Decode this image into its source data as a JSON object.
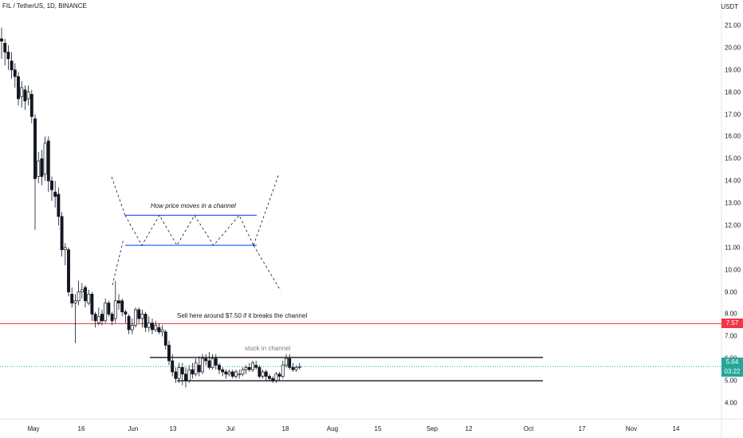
{
  "header": {
    "symbol": "FIL / TetherUS, 1D, BINANCE",
    "currency": "USDT"
  },
  "price_tags": {
    "alert_price": "7.57",
    "last_price": "5.64",
    "countdown": "03:22",
    "alert_color": "#f23645",
    "last_color": "#26a69a"
  },
  "chart_data": {
    "type": "candlestick",
    "ylim": [
      3.5,
      21.6
    ],
    "y_ticks": [
      "21.00",
      "20.00",
      "19.00",
      "18.00",
      "17.00",
      "16.00",
      "15.00",
      "14.00",
      "13.00",
      "12.00",
      "11.00",
      "10.00",
      "9.00",
      "8.00",
      "7.00",
      "6.00",
      "5.00",
      "4.00"
    ],
    "x_ticks": [
      "May",
      "16",
      "Jun",
      "13",
      "Jul",
      "18",
      "Aug",
      "15",
      "Sep",
      "12",
      "Oct",
      "17",
      "Nov",
      "14"
    ],
    "up_color": "#131722",
    "down_color": "#131722",
    "candles": [
      [
        20.4,
        20.3,
        20.9,
        19.5
      ],
      [
        20.2,
        19.8,
        20.4,
        19.2
      ],
      [
        19.8,
        19.5,
        20.1,
        19.0
      ],
      [
        19.4,
        19.0,
        19.8,
        18.6
      ],
      [
        19.0,
        18.7,
        19.3,
        18.2
      ],
      [
        18.7,
        17.7,
        18.9,
        17.4
      ],
      [
        17.8,
        18.2,
        18.5,
        17.3
      ],
      [
        18.1,
        17.6,
        18.3,
        17.2
      ],
      [
        17.7,
        18.0,
        18.3,
        17.4
      ],
      [
        17.9,
        16.9,
        18.1,
        16.6
      ],
      [
        16.8,
        14.1,
        17.0,
        11.8
      ],
      [
        14.2,
        14.9,
        15.3,
        13.9
      ],
      [
        15.0,
        14.2,
        15.4,
        13.8
      ],
      [
        14.3,
        15.7,
        16.0,
        14.0
      ],
      [
        15.8,
        14.0,
        16.0,
        13.5
      ],
      [
        14.0,
        13.6,
        14.2,
        13.1
      ],
      [
        13.5,
        13.3,
        14.0,
        12.8
      ],
      [
        13.4,
        12.4,
        13.7,
        12.0
      ],
      [
        12.4,
        10.9,
        12.6,
        10.6
      ],
      [
        10.9,
        11.0,
        11.2,
        10.2
      ],
      [
        10.9,
        9.0,
        11.0,
        8.8
      ],
      [
        8.9,
        8.5,
        9.2,
        8.3
      ],
      [
        8.5,
        8.6,
        8.9,
        6.7
      ],
      [
        8.6,
        9.0,
        9.5,
        8.4
      ],
      [
        9.0,
        9.1,
        9.4,
        8.7
      ],
      [
        9.2,
        8.6,
        9.3,
        8.3
      ],
      [
        8.5,
        8.9,
        9.1,
        8.4
      ],
      [
        8.9,
        8.0,
        9.0,
        7.7
      ],
      [
        8.0,
        7.7,
        8.1,
        7.4
      ],
      [
        7.6,
        7.9,
        8.3,
        7.5
      ],
      [
        8.0,
        7.7,
        8.2,
        7.5
      ],
      [
        7.7,
        8.5,
        8.7,
        7.6
      ],
      [
        8.5,
        8.0,
        8.6,
        7.9
      ],
      [
        8.0,
        7.7,
        8.1,
        7.5
      ],
      [
        7.8,
        8.6,
        9.5,
        7.6
      ],
      [
        8.6,
        8.5,
        8.9,
        8.2
      ],
      [
        8.6,
        8.1,
        8.7,
        7.9
      ],
      [
        8.1,
        8.0,
        8.2,
        7.6
      ],
      [
        7.9,
        7.3,
        8.0,
        7.1
      ],
      [
        7.3,
        7.5,
        7.8,
        7.1
      ],
      [
        7.5,
        8.2,
        8.3,
        7.4
      ],
      [
        8.2,
        7.8,
        8.3,
        7.6
      ],
      [
        7.8,
        8.0,
        8.2,
        7.4
      ],
      [
        8.0,
        7.4,
        8.1,
        7.2
      ],
      [
        7.4,
        7.6,
        7.9,
        7.2
      ],
      [
        7.6,
        7.3,
        7.8,
        7.1
      ],
      [
        7.3,
        7.5,
        7.7,
        7.2
      ],
      [
        7.4,
        7.2,
        7.6,
        7.1
      ],
      [
        7.2,
        7.3,
        7.5,
        7.0
      ],
      [
        7.2,
        6.6,
        7.3,
        6.4
      ],
      [
        6.6,
        5.9,
        6.8,
        5.7
      ],
      [
        5.9,
        5.4,
        6.2,
        5.2
      ],
      [
        5.4,
        5.1,
        5.6,
        4.9
      ],
      [
        5.1,
        5.6,
        5.8,
        4.9
      ],
      [
        5.6,
        5.3,
        5.8,
        4.8
      ],
      [
        5.3,
        5.0,
        5.6,
        4.7
      ],
      [
        5.0,
        5.5,
        5.7,
        4.9
      ],
      [
        5.5,
        5.3,
        5.8,
        5.1
      ],
      [
        5.3,
        5.8,
        6.0,
        5.2
      ],
      [
        5.7,
        5.4,
        6.1,
        5.2
      ],
      [
        5.4,
        6.0,
        6.2,
        5.3
      ],
      [
        6.0,
        5.9,
        6.2,
        5.7
      ],
      [
        5.9,
        5.6,
        6.3,
        5.5
      ],
      [
        5.6,
        6.0,
        6.2,
        5.5
      ],
      [
        6.0,
        5.7,
        6.2,
        5.5
      ],
      [
        5.7,
        5.5,
        5.8,
        5.3
      ],
      [
        5.5,
        5.4,
        5.6,
        5.2
      ],
      [
        5.4,
        5.3,
        5.5,
        5.1
      ],
      [
        5.3,
        5.4,
        5.5,
        5.2
      ],
      [
        5.4,
        5.2,
        5.5,
        5.1
      ],
      [
        5.2,
        5.4,
        5.5,
        5.1
      ],
      [
        5.3,
        5.3,
        5.5,
        5.1
      ],
      [
        5.3,
        5.5,
        5.6,
        5.2
      ],
      [
        5.5,
        5.6,
        5.7,
        5.3
      ],
      [
        5.6,
        5.5,
        5.8,
        5.4
      ],
      [
        5.5,
        5.8,
        5.9,
        5.4
      ],
      [
        5.7,
        5.6,
        5.9,
        5.5
      ],
      [
        5.6,
        5.2,
        5.7,
        5.1
      ],
      [
        5.2,
        5.4,
        5.5,
        5.1
      ],
      [
        5.4,
        5.2,
        5.5,
        5.0
      ],
      [
        5.2,
        5.1,
        5.3,
        5.0
      ],
      [
        5.1,
        5.0,
        5.2,
        4.9
      ],
      [
        5.0,
        5.3,
        5.4,
        4.9
      ],
      [
        5.3,
        5.2,
        5.4,
        5.0
      ],
      [
        5.2,
        5.7,
        5.9,
        5.1
      ],
      [
        5.7,
        6.0,
        6.2,
        5.6
      ],
      [
        6.0,
        5.6,
        6.2,
        5.5
      ],
      [
        5.6,
        5.5,
        5.8,
        5.4
      ],
      [
        5.5,
        5.6,
        5.7,
        5.4
      ],
      [
        5.6,
        5.64,
        5.8,
        5.5
      ]
    ],
    "annotations": {
      "channel_title": "How price moves in a channel",
      "sell_note": "Sell here around $7.50 if it breaks the channel",
      "stuck_label": "stuck in channel"
    },
    "channel_demo": {
      "upper": 12.45,
      "lower": 11.1,
      "color": "#2962ff"
    },
    "channel_real": {
      "upper": 6.05,
      "lower": 5.0,
      "color": "#000000"
    },
    "alert_line": {
      "price": 7.57,
      "color": "#f23645"
    },
    "last_line": {
      "price": 5.64,
      "color": "#26a69a"
    }
  }
}
